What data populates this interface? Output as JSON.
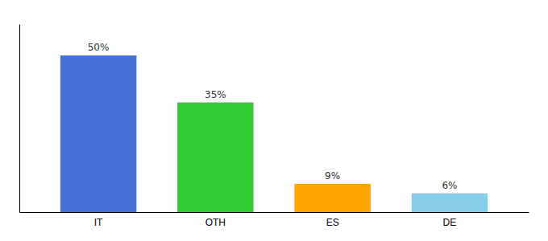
{
  "chart_data": {
    "type": "bar",
    "categories": [
      "IT",
      "OTH",
      "ES",
      "DE"
    ],
    "values": [
      50,
      35,
      9,
      6
    ],
    "value_labels": [
      "50%",
      "35%",
      "9%",
      "6%"
    ],
    "colors": [
      "#4472D4",
      "#33CC33",
      "#FFA500",
      "#87CEEB"
    ],
    "ylim": [
      0,
      60
    ],
    "data_labels": true,
    "grid": false,
    "tick_labels": "x"
  }
}
